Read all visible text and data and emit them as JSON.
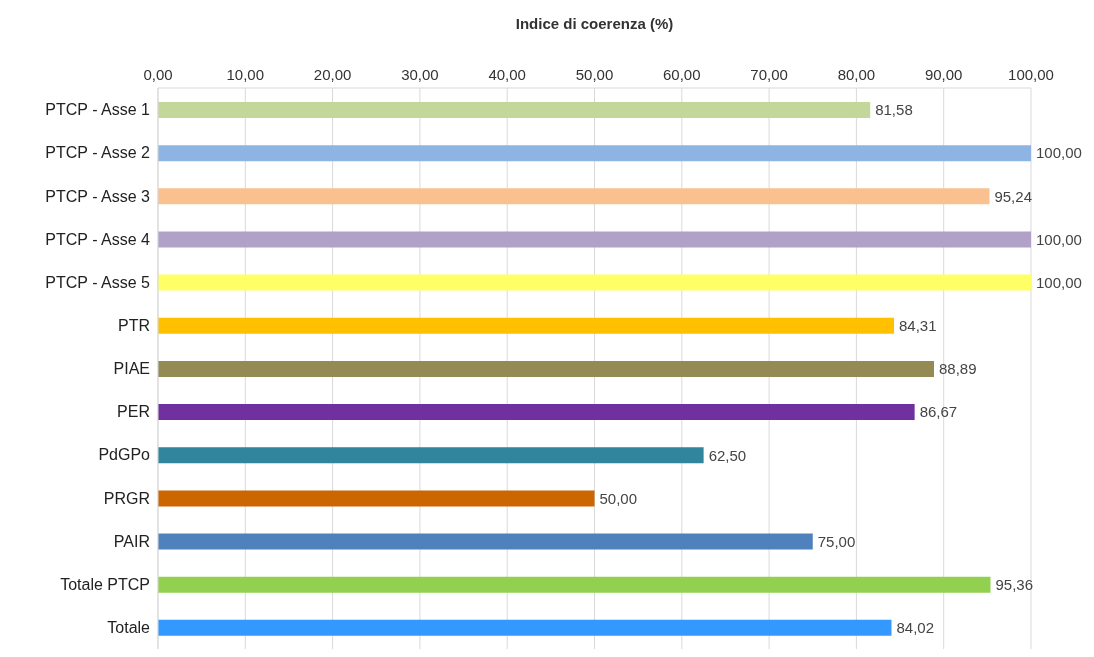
{
  "chart_data": {
    "type": "bar",
    "orientation": "horizontal",
    "xlabel": "Indice di coerenza (%)",
    "categories": [
      "PTCP - Asse 1",
      "PTCP - Asse 2",
      "PTCP - Asse 3",
      "PTCP - Asse 4",
      "PTCP - Asse 5",
      "PTR",
      "PIAE",
      "PER",
      "PdGPo",
      "PRGR",
      "PAIR",
      "Totale PTCP",
      "Totale"
    ],
    "values": [
      81.58,
      100,
      95.24,
      100,
      100,
      84.31,
      88.89,
      86.67,
      62.5,
      50,
      75,
      95.36,
      84.02
    ],
    "colors": [
      "#c4d79b",
      "#8db4e2",
      "#fac090",
      "#b1a0c7",
      "#ffff66",
      "#ffc000",
      "#948a54",
      "#7030a0",
      "#31859c",
      "#cc6600",
      "#4f81bd",
      "#92d050",
      "#3399ff"
    ],
    "value_labels": [
      "81,58",
      "100,00",
      "95,24",
      "100,00",
      "100,00",
      "84,31",
      "88,89",
      "86,67",
      "62,50",
      "50,00",
      "75,00",
      "95,36",
      "84,02"
    ],
    "xlim": [
      0,
      100
    ],
    "xticks": [
      {
        "value": 0,
        "label": "0,00"
      },
      {
        "value": 10,
        "label": "10,00"
      },
      {
        "value": 20,
        "label": "20,00"
      },
      {
        "value": 30,
        "label": "30,00"
      },
      {
        "value": 40,
        "label": "40,00"
      },
      {
        "value": 50,
        "label": "50,00"
      },
      {
        "value": 60,
        "label": "60,00"
      },
      {
        "value": 70,
        "label": "70,00"
      },
      {
        "value": 80,
        "label": "80,00"
      },
      {
        "value": 90,
        "label": "90,00"
      },
      {
        "value": 100,
        "label": "100,00"
      }
    ],
    "grid": "x",
    "legend": false
  }
}
